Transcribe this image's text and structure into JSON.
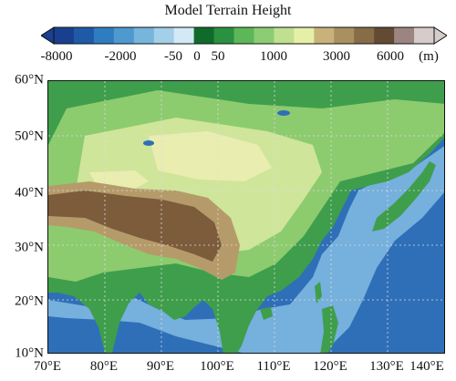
{
  "title": "Model Terrain Height",
  "colorbar": {
    "unit": "(m)",
    "colors": [
      "#1a3f8f",
      "#1f5aa8",
      "#2f7dc0",
      "#4e99d0",
      "#76b5dc",
      "#a3cfe8",
      "#d3e9f5",
      "#0f6b2a",
      "#2a9140",
      "#5db758",
      "#8ccd74",
      "#bfe08f",
      "#e6efa8",
      "#c8b27a",
      "#a8905f",
      "#866c47",
      "#634a33",
      "#9c8580",
      "#d6cccb"
    ],
    "tick_labels": [
      "-8000",
      "-2000",
      "-50",
      "0",
      "50",
      "1000",
      "3000",
      "6000"
    ]
  },
  "map": {
    "lon_labels": [
      "70°E",
      "80°E",
      "90°E",
      "100°E",
      "110°E",
      "120°E",
      "130°E",
      "140°E"
    ],
    "lat_labels": [
      "60°N",
      "50°N",
      "40°N",
      "30°N",
      "20°N",
      "10°N"
    ],
    "colors": {
      "deep_ocean": "#2f6fb8",
      "shelf": "#76b0dc",
      "lowland": "#3f9e4c",
      "plain": "#8dcb6f",
      "hills": "#cfe59a",
      "plateau_edge": "#b69b6a",
      "plateau": "#7d5c3c",
      "desert": "#e9edb0"
    }
  }
}
